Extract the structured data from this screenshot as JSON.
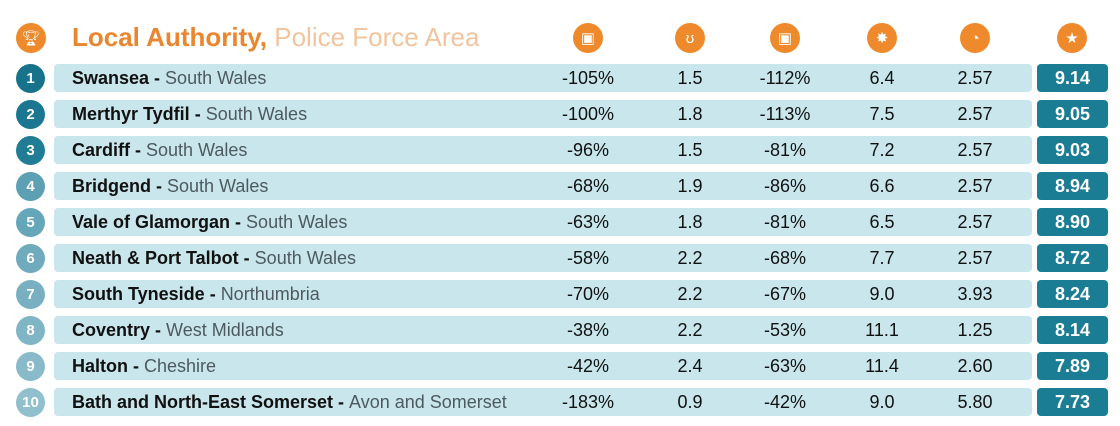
{
  "header": {
    "title_primary": "Local Authority,",
    "title_secondary": "Police Force Area",
    "icons": [
      "trophy-icon",
      "calendar-clock-icon",
      "stethoscope-icon",
      "calendar-clock-icon",
      "car-crash-icon",
      "speedometer-icon",
      "star-icon"
    ]
  },
  "colors": {
    "accent": "#ef8a2c",
    "row_bg": "#c8e6ec",
    "score_bg": "#1b7d93"
  },
  "rows": [
    {
      "rank": "1",
      "la": "Swansea",
      "pfa": "South Wales",
      "c1": "-105%",
      "c2": "1.5",
      "c3": "-112%",
      "c4": "6.4",
      "c5": "2.57",
      "score": "9.14"
    },
    {
      "rank": "2",
      "la": "Merthyr Tydfil",
      "pfa": "South Wales",
      "c1": "-100%",
      "c2": "1.8",
      "c3": "-113%",
      "c4": "7.5",
      "c5": "2.57",
      "score": "9.05"
    },
    {
      "rank": "3",
      "la": "Cardiff",
      "pfa": "South Wales",
      "c1": "-96%",
      "c2": "1.5",
      "c3": "-81%",
      "c4": "7.2",
      "c5": "2.57",
      "score": "9.03"
    },
    {
      "rank": "4",
      "la": "Bridgend",
      "pfa": "South Wales",
      "c1": "-68%",
      "c2": "1.9",
      "c3": "-86%",
      "c4": "6.6",
      "c5": "2.57",
      "score": "8.94"
    },
    {
      "rank": "5",
      "la": "Vale of Glamorgan",
      "pfa": "South Wales",
      "c1": "-63%",
      "c2": "1.8",
      "c3": "-81%",
      "c4": "6.5",
      "c5": "2.57",
      "score": "8.90"
    },
    {
      "rank": "6",
      "la": "Neath & Port Talbot",
      "pfa": "South Wales",
      "c1": "-58%",
      "c2": "2.2",
      "c3": "-68%",
      "c4": "7.7",
      "c5": "2.57",
      "score": "8.72"
    },
    {
      "rank": "7",
      "la": "South Tyneside",
      "pfa": "Northumbria",
      "c1": "-70%",
      "c2": "2.2",
      "c3": "-67%",
      "c4": "9.0",
      "c5": "3.93",
      "score": "8.24"
    },
    {
      "rank": "8",
      "la": "Coventry",
      "pfa": "West Midlands",
      "c1": "-38%",
      "c2": "2.2",
      "c3": "-53%",
      "c4": "11.1",
      "c5": "1.25",
      "score": "8.14"
    },
    {
      "rank": "9",
      "la": "Halton",
      "pfa": "Cheshire",
      "c1": "-42%",
      "c2": "2.4",
      "c3": "-63%",
      "c4": "11.4",
      "c5": "2.60",
      "score": "7.89"
    },
    {
      "rank": "10",
      "la": "Bath and North-East Somerset",
      "pfa": "Avon and Somerset",
      "c1": "-183%",
      "c2": "0.9",
      "c3": "-42%",
      "c4": "9.0",
      "c5": "5.80",
      "score": "7.73"
    }
  ]
}
